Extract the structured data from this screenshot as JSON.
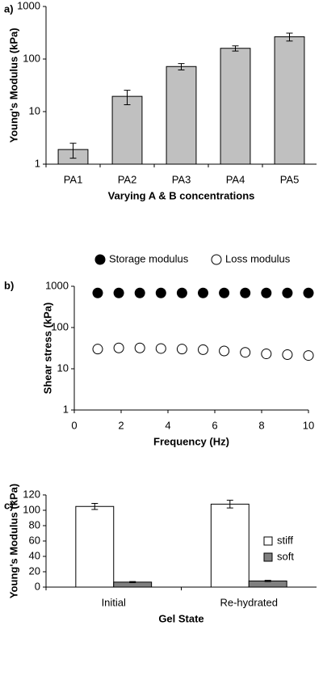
{
  "chart_data": [
    {
      "type": "bar",
      "panel_label": "a)",
      "y_label": "Young's Modulus (kPa)",
      "x_label": "Varying A & B concentrations",
      "categories": [
        "PA1",
        "PA2",
        "PA3",
        "PA4",
        "PA5"
      ],
      "values": [
        1.9,
        19.5,
        72,
        160,
        265
      ],
      "errors": [
        0.6,
        6,
        10,
        18,
        45
      ],
      "color": "#c0c0c0",
      "log_y": true,
      "ylim": [
        1,
        1000
      ],
      "yticks": [
        1,
        10,
        100,
        1000
      ]
    },
    {
      "type": "scatter",
      "panel_label": "b)",
      "y_label": "Shear stress (kPa)",
      "x_label": "Frequency (Hz)",
      "x": [
        1,
        1.9,
        2.8,
        3.7,
        4.6,
        5.5,
        6.4,
        7.3,
        8.2,
        9.1,
        10
      ],
      "series": [
        {
          "name": "Storage modulus",
          "color": "#000000",
          "values": [
            690,
            690,
            690,
            690,
            690,
            690,
            690,
            690,
            690,
            690,
            690
          ]
        },
        {
          "name": "Loss modulus",
          "color": "#ffffff",
          "values": [
            30,
            32,
            32,
            31,
            30,
            29,
            27,
            25,
            23,
            22,
            21
          ]
        }
      ],
      "log_y": true,
      "xlim": [
        0,
        10
      ],
      "xticks": [
        0,
        2,
        4,
        6,
        8,
        10
      ],
      "ylim": [
        1,
        1000
      ],
      "yticks": [
        1,
        10,
        100,
        1000
      ],
      "legend": "top"
    },
    {
      "type": "bar",
      "panel_label": "c)",
      "y_label": "Young's Modulus (kPa)",
      "x_label": "Gel State",
      "categories": [
        "Initial",
        "Re-hydrated"
      ],
      "series": [
        {
          "name": "stiff",
          "color": "#ffffff",
          "values": [
            105,
            108
          ],
          "errors": [
            4,
            5
          ]
        },
        {
          "name": "soft",
          "color": "#808080",
          "values": [
            6.5,
            8
          ],
          "errors": [
            0.7,
            0.8
          ]
        }
      ],
      "ylim": [
        0,
        120
      ],
      "yticks": [
        0,
        20,
        40,
        60,
        80,
        100,
        120
      ],
      "legend": "right"
    }
  ]
}
